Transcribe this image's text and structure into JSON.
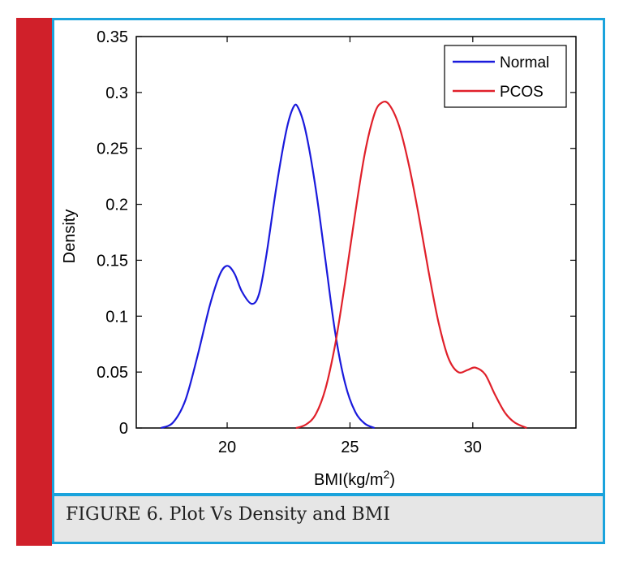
{
  "caption": "FIGURE 6. Plot Vs Density and BMI",
  "colors": {
    "accent_bar": "#d0202a",
    "frame": "#1aa3dc",
    "caption_bg": "#e6e6e6"
  },
  "chart_data": {
    "type": "line",
    "xlabel": "BMI(kg/m",
    "xlabel_sup": "2",
    "xlabel_close": ")",
    "ylabel": "Density",
    "xlim": [
      16.3,
      34.2
    ],
    "ylim": [
      0,
      0.35
    ],
    "xticks": [
      20,
      25,
      30
    ],
    "xtick_labels": [
      "20",
      "25",
      "30"
    ],
    "yticks": [
      0,
      0.05,
      0.1,
      0.15,
      0.2,
      0.25,
      0.3,
      0.35
    ],
    "ytick_labels": [
      "0",
      "0.05",
      "0.1",
      "0.15",
      "0.2",
      "0.25",
      "0.3",
      "0.35"
    ],
    "legend_position": "top-right",
    "series": [
      {
        "name": "Normal",
        "color": "#1a1adc",
        "x": [
          17.3,
          17.8,
          18.3,
          18.8,
          19.3,
          19.7,
          20.0,
          20.3,
          20.6,
          21.0,
          21.3,
          21.6,
          22.0,
          22.4,
          22.7,
          22.9,
          23.2,
          23.6,
          24.0,
          24.4,
          24.8,
          25.2,
          25.6,
          26.0
        ],
        "y": [
          0.0,
          0.005,
          0.025,
          0.065,
          0.11,
          0.137,
          0.145,
          0.138,
          0.122,
          0.111,
          0.12,
          0.155,
          0.215,
          0.265,
          0.287,
          0.286,
          0.265,
          0.215,
          0.15,
          0.085,
          0.04,
          0.015,
          0.004,
          0.0
        ]
      },
      {
        "name": "PCOS",
        "color": "#e0202a",
        "x": [
          22.8,
          23.2,
          23.6,
          24.0,
          24.4,
          24.8,
          25.2,
          25.6,
          26.0,
          26.3,
          26.6,
          27.0,
          27.4,
          27.8,
          28.2,
          28.6,
          29.0,
          29.4,
          29.8,
          30.1,
          30.5,
          30.9,
          31.3,
          31.7,
          32.2
        ],
        "y": [
          0.0,
          0.003,
          0.012,
          0.035,
          0.075,
          0.13,
          0.19,
          0.245,
          0.281,
          0.291,
          0.289,
          0.27,
          0.235,
          0.19,
          0.14,
          0.095,
          0.063,
          0.05,
          0.052,
          0.054,
          0.048,
          0.03,
          0.014,
          0.005,
          0.0
        ]
      }
    ]
  }
}
